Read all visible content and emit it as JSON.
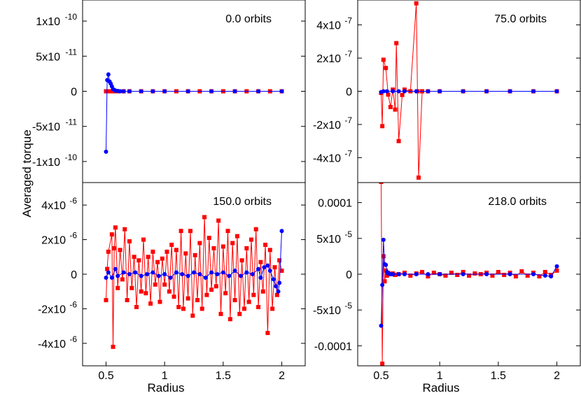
{
  "ylabel": "Averaged torque",
  "chart_data": [
    {
      "type": "scatter",
      "annotation": "0.0 orbits",
      "xlim": [
        0.3,
        2.2
      ],
      "ylim": [
        -1.3e-10,
        1.3e-10
      ],
      "xticks": [],
      "yticks": [
        {
          "value": 1e-10,
          "label": "1x10",
          "exp": "-10"
        },
        {
          "value": 5e-11,
          "label": "5x10",
          "exp": "-11"
        },
        {
          "value": 0,
          "label": "0",
          "exp": ""
        },
        {
          "value": -5e-11,
          "label": "-5x10",
          "exp": "-11"
        },
        {
          "value": -1e-10,
          "label": "-1x10",
          "exp": "-10"
        }
      ],
      "series": [
        {
          "color": "#ff0000",
          "marker": "square",
          "x": [
            0.5,
            0.51,
            0.52,
            0.53,
            0.54,
            0.55,
            0.56,
            0.58,
            0.6,
            0.65,
            0.7,
            0.8,
            0.9,
            1.0,
            1.1,
            1.2,
            1.3,
            1.4,
            1.5,
            1.6,
            1.7,
            1.8,
            1.9,
            2.0
          ],
          "y": [
            0,
            0,
            0,
            0,
            0,
            0,
            0,
            0,
            0,
            0,
            0,
            0,
            0,
            0,
            0,
            0,
            0,
            0,
            0,
            0,
            0,
            0,
            0,
            0
          ]
        },
        {
          "color": "#0000ff",
          "marker": "circle",
          "x": [
            0.5,
            0.51,
            0.52,
            0.53,
            0.54,
            0.55,
            0.56,
            0.57,
            0.58,
            0.6,
            0.62,
            0.65,
            0.7,
            0.8,
            0.9,
            1.0,
            1.2,
            1.4,
            1.6,
            1.8,
            2.0
          ],
          "y": [
            -8.6e-11,
            1.6e-11,
            2.4e-11,
            1.4e-11,
            1.1e-11,
            7e-12,
            3e-12,
            2e-12,
            1e-12,
            5e-13,
            0,
            0,
            0,
            0,
            0,
            0,
            0,
            0,
            0,
            0,
            0
          ]
        }
      ]
    },
    {
      "type": "scatter",
      "annotation": "75.0 orbits",
      "xlim": [
        0.3,
        2.2
      ],
      "ylim": [
        -5.5e-07,
        5.5e-07
      ],
      "xticks": [],
      "yticks": [
        {
          "value": 4e-07,
          "label": "4x10",
          "exp": "-7"
        },
        {
          "value": 2e-07,
          "label": "2x10",
          "exp": "-7"
        },
        {
          "value": 0,
          "label": "0",
          "exp": ""
        },
        {
          "value": -2e-07,
          "label": "-2x10",
          "exp": "-7"
        },
        {
          "value": -4e-07,
          "label": "-4x10",
          "exp": "-7"
        }
      ],
      "series": [
        {
          "color": "#ff0000",
          "marker": "square",
          "x": [
            0.5,
            0.51,
            0.52,
            0.54,
            0.56,
            0.58,
            0.6,
            0.62,
            0.63,
            0.65,
            0.68,
            0.7,
            0.75,
            0.8,
            0.81,
            0.82,
            0.85,
            0.9,
            1.0,
            1.2,
            1.4,
            1.6,
            1.8,
            2.0
          ],
          "y": [
            -1e-08,
            -2.1e-07,
            1.9e-07,
            1.4e-07,
            -2e-08,
            -9.5e-08,
            1e-08,
            -1.1e-07,
            2.9e-07,
            -3e-07,
            -2.2e-08,
            1e-08,
            0,
            5.3e-07,
            0,
            -5.2e-07,
            0,
            0,
            0,
            0,
            0,
            0,
            0,
            0
          ]
        },
        {
          "color": "#0000ff",
          "marker": "circle",
          "x": [
            0.5,
            0.52,
            0.55,
            0.6,
            0.65,
            0.7,
            0.8,
            0.9,
            1.0,
            1.2,
            1.4,
            1.6,
            1.8,
            2.0
          ],
          "y": [
            -5e-09,
            0,
            0,
            0,
            0,
            0,
            0,
            0,
            0,
            0,
            0,
            0,
            0,
            0
          ]
        }
      ]
    },
    {
      "type": "scatter",
      "annotation": "150.0 orbits",
      "xlim": [
        0.3,
        2.2
      ],
      "ylim": [
        -5.3e-06,
        5.3e-06
      ],
      "xticks": [
        {
          "value": 0.5,
          "label": "0.5"
        },
        {
          "value": 1,
          "label": "1"
        },
        {
          "value": 1.5,
          "label": "1.5"
        },
        {
          "value": 2,
          "label": "2"
        }
      ],
      "xlabel": "Radius",
      "yticks": [
        {
          "value": 4e-06,
          "label": "4x10",
          "exp": "-6"
        },
        {
          "value": 2e-06,
          "label": "2x10",
          "exp": "-6"
        },
        {
          "value": 0,
          "label": "0",
          "exp": ""
        },
        {
          "value": -2e-06,
          "label": "-2x10",
          "exp": "-6"
        },
        {
          "value": -4e-06,
          "label": "-4x10",
          "exp": "-6"
        }
      ],
      "series": [
        {
          "color": "#ff0000",
          "marker": "square",
          "x": [
            0.5,
            0.51,
            0.52,
            0.55,
            0.56,
            0.57,
            0.58,
            0.6,
            0.62,
            0.64,
            0.66,
            0.68,
            0.7,
            0.72,
            0.74,
            0.76,
            0.78,
            0.8,
            0.82,
            0.84,
            0.86,
            0.88,
            0.9,
            0.92,
            0.94,
            0.96,
            0.98,
            1.0,
            1.02,
            1.04,
            1.06,
            1.08,
            1.1,
            1.12,
            1.14,
            1.16,
            1.18,
            1.2,
            1.22,
            1.24,
            1.26,
            1.28,
            1.3,
            1.32,
            1.34,
            1.36,
            1.38,
            1.4,
            1.42,
            1.44,
            1.46,
            1.48,
            1.5,
            1.52,
            1.54,
            1.56,
            1.58,
            1.6,
            1.62,
            1.64,
            1.66,
            1.68,
            1.7,
            1.72,
            1.74,
            1.76,
            1.78,
            1.8,
            1.82,
            1.84,
            1.86,
            1.88,
            1.9,
            1.92,
            1.94,
            1.96,
            1.98,
            2.0
          ],
          "y": [
            -1.5e-06,
            3e-07,
            1.3e-06,
            2.3e-06,
            -4.2e-06,
            1.5e-06,
            2.7e-06,
            -8e-07,
            1.4e-06,
            -3e-07,
            2.6e-06,
            -1.5e-06,
            1.9e-06,
            -8e-07,
            1e-06,
            -1.9e-06,
            8e-07,
            -1e-06,
            2e-06,
            -1.1e-06,
            1e-06,
            -1.7e-06,
            1.3e-06,
            -6e-07,
            7e-07,
            -1.6e-06,
            9e-07,
            -6e-07,
            1.3e-06,
            -1e-06,
            1.7e-06,
            -1.3e-06,
            1.4e-06,
            -1.9e-06,
            2.5e-06,
            -2e-06,
            1.2e-06,
            -1.4e-06,
            2.5e-06,
            -2.4e-06,
            1.1e-06,
            -1.5e-06,
            1.8e-06,
            -2e-06,
            3.3e-06,
            -1.2e-06,
            2.1e-06,
            -9e-07,
            1.5e-06,
            -7e-07,
            3.1e-06,
            -2.3e-06,
            1.6e-06,
            -1.1e-06,
            2.5e-06,
            -2.6e-06,
            1.8e-06,
            -1.5e-06,
            2.2e-06,
            -2.3e-06,
            8e-07,
            -2e-06,
            1.5e-06,
            -1.6e-06,
            2e-06,
            -1.2e-06,
            2.6e-06,
            -1.9e-06,
            7e-07,
            -1e-06,
            1.7e-06,
            -3.4e-06,
            1.4e-06,
            -2e-06,
            4e-07,
            -1.2e-06,
            8e-07,
            2e-07
          ]
        },
        {
          "color": "#0000ff",
          "marker": "circle",
          "x": [
            0.5,
            0.52,
            0.55,
            0.58,
            0.6,
            0.65,
            0.7,
            0.75,
            0.8,
            0.85,
            0.9,
            0.95,
            1.0,
            1.05,
            1.1,
            1.15,
            1.2,
            1.25,
            1.3,
            1.35,
            1.4,
            1.45,
            1.5,
            1.55,
            1.6,
            1.65,
            1.7,
            1.75,
            1.8,
            1.82,
            1.85,
            1.88,
            1.9,
            1.93,
            1.95,
            1.97,
            1.98,
            2.0
          ],
          "y": [
            -2e-07,
            1e-07,
            -2e-07,
            3e-07,
            -1e-07,
            1e-07,
            0,
            1e-07,
            -1e-07,
            0,
            1e-07,
            -1e-07,
            0,
            -2e-07,
            1e-07,
            0,
            -1e-07,
            1e-07,
            0,
            -2e-07,
            1e-07,
            0,
            1e-07,
            -1e-07,
            2e-07,
            -1e-07,
            1e-07,
            0,
            3e-07,
            -2e-07,
            4e-07,
            5e-07,
            2e-07,
            -3e-07,
            -7e-07,
            -1e-06,
            -5e-07,
            2.5e-06
          ]
        }
      ]
    },
    {
      "type": "scatter",
      "annotation": "218.0 orbits",
      "xlim": [
        0.3,
        2.2
      ],
      "ylim": [
        -0.000128,
        0.000128
      ],
      "xticks": [
        {
          "value": 0.5,
          "label": "0.5"
        },
        {
          "value": 1,
          "label": "1"
        },
        {
          "value": 1.5,
          "label": "1.5"
        },
        {
          "value": 2,
          "label": "2"
        }
      ],
      "xlabel": "Radius",
      "yticks": [
        {
          "value": 0.0001,
          "label": "0.0001",
          "exp": ""
        },
        {
          "value": 5e-05,
          "label": "5x10",
          "exp": "-5"
        },
        {
          "value": 0,
          "label": "0",
          "exp": ""
        },
        {
          "value": -5e-05,
          "label": "-5x10",
          "exp": "-5"
        },
        {
          "value": -0.0001,
          "label": "-0.0001",
          "exp": ""
        }
      ],
      "series": [
        {
          "color": "#ff0000",
          "marker": "square",
          "x": [
            0.5,
            0.51,
            0.52,
            0.53,
            0.54,
            0.55,
            0.56,
            0.58,
            0.6,
            0.62,
            0.65,
            0.7,
            0.75,
            0.8,
            0.85,
            0.9,
            0.95,
            1.0,
            1.05,
            1.1,
            1.15,
            1.2,
            1.25,
            1.3,
            1.35,
            1.4,
            1.45,
            1.5,
            1.55,
            1.6,
            1.65,
            1.7,
            1.75,
            1.8,
            1.85,
            1.9,
            1.95,
            2.0
          ],
          "y": [
            0.000129,
            -0.000125,
            2.5e-05,
            -1e-05,
            5e-06,
            -2e-06,
            2e-06,
            0,
            1e-06,
            -1e-06,
            0,
            2e-06,
            -2e-06,
            1e-06,
            3e-06,
            -3e-06,
            2e-06,
            0,
            -2e-06,
            2e-06,
            -1e-06,
            3e-06,
            -2e-06,
            1e-06,
            0,
            2e-06,
            -2e-06,
            3e-06,
            -1e-06,
            2e-06,
            -3e-06,
            4e-06,
            -2e-06,
            2e-06,
            -3e-06,
            3e-06,
            -1e-06,
            5e-06
          ]
        },
        {
          "color": "#0000ff",
          "marker": "circle",
          "x": [
            0.5,
            0.51,
            0.52,
            0.53,
            0.54,
            0.55,
            0.56,
            0.58,
            0.6,
            0.65,
            0.7,
            0.8,
            0.9,
            1.0,
            1.2,
            1.4,
            1.6,
            1.8,
            1.9,
            1.95,
            2.0
          ],
          "y": [
            -7.2e-05,
            -1.5e-05,
            4.8e-05,
            1.4e-05,
            1.3e-05,
            3e-06,
            1e-06,
            0,
            0,
            0,
            0,
            0,
            0,
            0,
            0,
            0,
            0,
            0,
            -2e-06,
            -3e-06,
            1.1e-05
          ]
        }
      ]
    }
  ]
}
